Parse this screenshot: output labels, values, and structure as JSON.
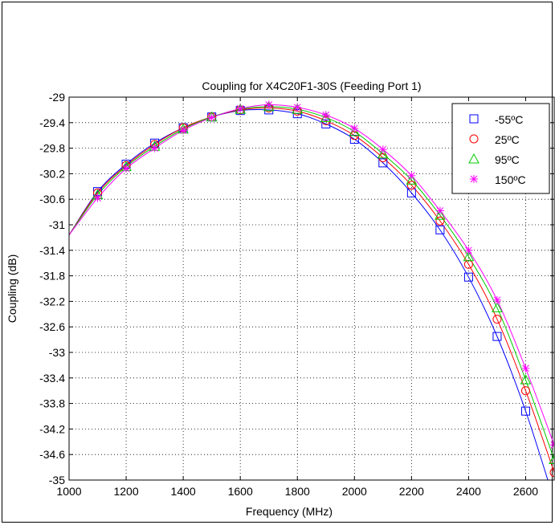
{
  "chart_data": {
    "type": "line",
    "title": "Coupling for X4C20F1-30S (Feeding Port 1)",
    "xlabel": "Frequency (MHz)",
    "ylabel": "Coupling (dB)",
    "xlim": [
      1000,
      2700
    ],
    "ylim": [
      -35,
      -29
    ],
    "x_ticks": [
      1000,
      1200,
      1400,
      1600,
      1800,
      2000,
      2200,
      2400,
      2600
    ],
    "y_ticks": [
      -29,
      -29.4,
      -29.8,
      -30.2,
      -30.6,
      -31,
      -31.4,
      -31.8,
      -32.2,
      -32.6,
      -33,
      -33.4,
      -33.8,
      -34.2,
      -34.6,
      -35
    ],
    "grid": true,
    "legend_position": "top-right",
    "x": [
      1000,
      1100,
      1200,
      1300,
      1400,
      1500,
      1600,
      1700,
      1800,
      1900,
      2000,
      2100,
      2200,
      2300,
      2400,
      2500,
      2600,
      2700
    ],
    "series": [
      {
        "name": "-55ºC",
        "marker": "square",
        "color": "#0000ff",
        "values": [
          -31.16,
          -30.48,
          -30.05,
          -29.72,
          -29.48,
          -29.31,
          -29.21,
          -29.2,
          -29.26,
          -29.42,
          -29.66,
          -30.03,
          -30.5,
          -31.08,
          -31.82,
          -32.75,
          -33.92,
          -35.32
        ]
      },
      {
        "name": "25ºC",
        "marker": "circle",
        "color": "#ff0000",
        "values": [
          -31.16,
          -30.5,
          -30.07,
          -29.74,
          -29.48,
          -29.31,
          -29.2,
          -29.17,
          -29.22,
          -29.37,
          -29.6,
          -29.95,
          -30.38,
          -30.94,
          -31.62,
          -32.48,
          -33.6,
          -34.88
        ]
      },
      {
        "name": "95ºC",
        "marker": "triangle",
        "color": "#00cc00",
        "values": [
          -31.16,
          -30.53,
          -30.09,
          -29.77,
          -29.5,
          -29.31,
          -29.19,
          -29.15,
          -29.19,
          -29.32,
          -29.54,
          -29.89,
          -30.3,
          -30.85,
          -31.5,
          -32.3,
          -33.43,
          -34.68
        ]
      },
      {
        "name": "150ºC",
        "marker": "asterisk",
        "color": "#ff00ff",
        "values": [
          -31.16,
          -30.58,
          -30.12,
          -29.8,
          -29.52,
          -29.32,
          -29.18,
          -29.12,
          -29.16,
          -29.28,
          -29.49,
          -29.82,
          -30.23,
          -30.78,
          -31.4,
          -32.18,
          -33.25,
          -34.45
        ]
      }
    ]
  }
}
